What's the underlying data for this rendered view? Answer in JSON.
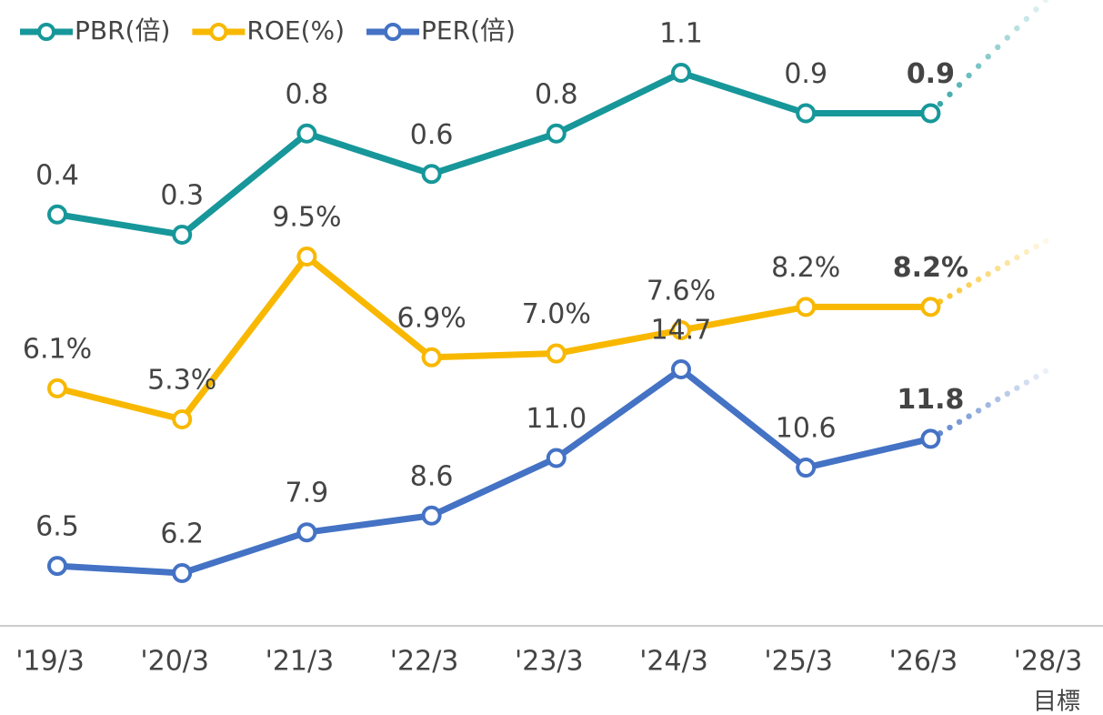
{
  "chart_data": {
    "type": "line",
    "categories": [
      "'19/3",
      "'20/3",
      "'21/3",
      "'22/3",
      "'23/3",
      "'24/3",
      "'25/3",
      "'26/3",
      "'28/3"
    ],
    "target_label": "目標",
    "series": [
      {
        "name": "PBR(倍)",
        "color": "#17979a",
        "values": [
          0.4,
          0.3,
          0.8,
          0.6,
          0.8,
          1.1,
          0.9,
          0.9,
          null
        ],
        "value_labels": [
          "0.4",
          "0.3",
          "0.8",
          "0.6",
          "0.8",
          "1.1",
          "0.9",
          "0.9",
          null
        ]
      },
      {
        "name": "ROE(%)",
        "color": "#f8b800",
        "values": [
          6.1,
          5.3,
          9.5,
          6.9,
          7.0,
          7.6,
          8.2,
          8.2,
          null
        ],
        "value_labels": [
          "6.1%",
          "5.3%",
          "9.5%",
          "6.9%",
          "7.0%",
          "7.6%",
          "8.2%",
          "8.2%",
          null
        ]
      },
      {
        "name": "PER(倍)",
        "color": "#4472c4",
        "values": [
          6.5,
          6.2,
          7.9,
          8.6,
          11.0,
          14.7,
          10.6,
          11.8,
          null
        ],
        "value_labels": [
          "6.5",
          "6.2",
          "7.9",
          "8.6",
          "11.0",
          "14.7",
          "10.6",
          "11.8",
          null
        ]
      }
    ]
  }
}
